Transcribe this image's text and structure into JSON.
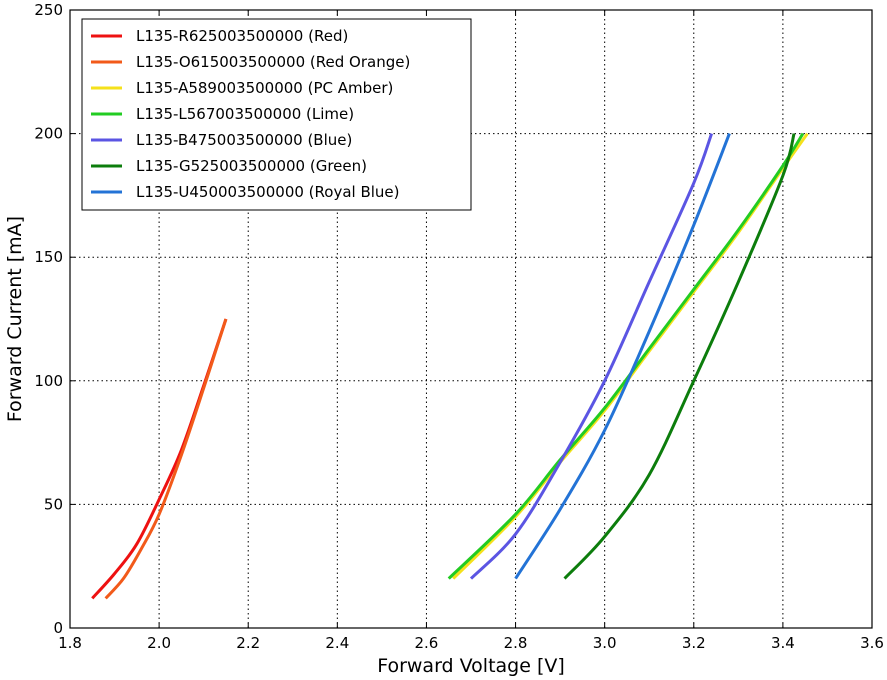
{
  "chart_data": {
    "type": "line",
    "title": "",
    "xlabel": "Forward Voltage [V]",
    "ylabel": "Forward Current [mA]",
    "xlim": [
      1.8,
      3.6
    ],
    "ylim": [
      0,
      250
    ],
    "xticks": [
      1.8,
      2.0,
      2.2,
      2.4,
      2.6,
      2.8,
      3.0,
      3.2,
      3.4,
      3.6
    ],
    "xtick_labels": [
      "1.8",
      "2.0",
      "2.2",
      "2.4",
      "2.6",
      "2.8",
      "3.0",
      "3.2",
      "3.4",
      "3.6"
    ],
    "yticks": [
      0,
      50,
      100,
      150,
      200,
      250
    ],
    "ytick_labels": [
      "0",
      "50",
      "100",
      "150",
      "200",
      "250"
    ],
    "grid": true,
    "legend_position": "top-left",
    "series": [
      {
        "name": "L135-R625003500000 (Red)",
        "color": "#ee1111",
        "points": [
          [
            1.85,
            12
          ],
          [
            1.9,
            22
          ],
          [
            1.95,
            34
          ],
          [
            2.0,
            52
          ],
          [
            2.05,
            72
          ],
          [
            2.1,
            98
          ],
          [
            2.15,
            125
          ]
        ]
      },
      {
        "name": "L135-O615003500000 (Red Orange)",
        "color": "#f25a1a",
        "points": [
          [
            1.88,
            12
          ],
          [
            1.92,
            20
          ],
          [
            1.96,
            32
          ],
          [
            2.0,
            46
          ],
          [
            2.05,
            70
          ],
          [
            2.1,
            97
          ],
          [
            2.15,
            125
          ]
        ]
      },
      {
        "name": "L135-A589003500000 (PC Amber)",
        "color": "#f5e11b",
        "points": [
          [
            2.66,
            20
          ],
          [
            2.8,
            45
          ],
          [
            2.9,
            67
          ],
          [
            3.0,
            88
          ],
          [
            3.1,
            112
          ],
          [
            3.2,
            136
          ],
          [
            3.3,
            160
          ],
          [
            3.4,
            186
          ],
          [
            3.455,
            200
          ]
        ]
      },
      {
        "name": "L135-L567003500000 (Lime)",
        "color": "#22cc22",
        "points": [
          [
            2.65,
            20
          ],
          [
            2.8,
            46
          ],
          [
            2.9,
            68
          ],
          [
            3.0,
            89
          ],
          [
            3.1,
            113
          ],
          [
            3.2,
            137
          ],
          [
            3.3,
            161
          ],
          [
            3.4,
            187
          ],
          [
            3.445,
            200
          ]
        ]
      },
      {
        "name": "L135-B475003500000 (Blue)",
        "color": "#5b55e3",
        "points": [
          [
            2.7,
            20
          ],
          [
            2.8,
            38
          ],
          [
            2.9,
            67
          ],
          [
            3.0,
            100
          ],
          [
            3.1,
            140
          ],
          [
            3.2,
            180
          ],
          [
            3.24,
            200
          ]
        ]
      },
      {
        "name": "L135-G525003500000 (Green)",
        "color": "#0c7d0c",
        "points": [
          [
            2.91,
            20
          ],
          [
            3.0,
            37
          ],
          [
            3.1,
            62
          ],
          [
            3.2,
            100
          ],
          [
            3.3,
            140
          ],
          [
            3.4,
            183
          ],
          [
            3.425,
            200
          ]
        ]
      },
      {
        "name": "L135-U450003500000 (Royal Blue)",
        "color": "#2373d6",
        "points": [
          [
            2.8,
            20
          ],
          [
            2.9,
            48
          ],
          [
            3.0,
            80
          ],
          [
            3.1,
            120
          ],
          [
            3.2,
            163
          ],
          [
            3.28,
            200
          ]
        ]
      }
    ]
  }
}
